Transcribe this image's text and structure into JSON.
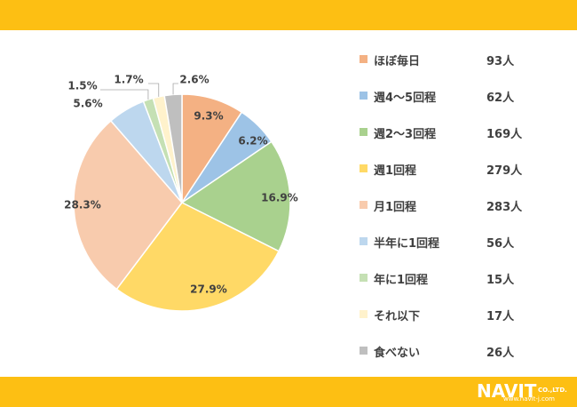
{
  "chart_data": {
    "type": "pie",
    "title": "",
    "slices": [
      {
        "label": "ほぼ毎日",
        "count": "93人",
        "percent": 9.3,
        "percent_label": "9.3%",
        "color": "#f4b183"
      },
      {
        "label": "週4〜5回程",
        "count": "62人",
        "percent": 6.2,
        "percent_label": "6.2%",
        "color": "#9dc3e6"
      },
      {
        "label": "週2〜3回程",
        "count": "169人",
        "percent": 16.9,
        "percent_label": "16.9%",
        "color": "#a9d18e"
      },
      {
        "label": "週1回程",
        "count": "279人",
        "percent": 27.9,
        "percent_label": "27.9%",
        "color": "#ffd966"
      },
      {
        "label": "月1回程",
        "count": "283人",
        "percent": 28.3,
        "percent_label": "28.3%",
        "color": "#f8cbad"
      },
      {
        "label": "半年に1回程",
        "count": "56人",
        "percent": 5.6,
        "percent_label": "5.6%",
        "color": "#bdd7ee"
      },
      {
        "label": "年に1回程",
        "count": "15人",
        "percent": 1.5,
        "percent_label": "1.5%",
        "color": "#c5e0b4"
      },
      {
        "label": "それ以下",
        "count": "17人",
        "percent": 1.7,
        "percent_label": "1.7%",
        "color": "#fff2cc"
      },
      {
        "label": "食べない",
        "count": "26人",
        "percent": 2.6,
        "percent_label": "2.6%",
        "color": "#bfbfbf"
      }
    ],
    "legend_position": "right"
  },
  "branding": {
    "logo_text": "NAVIT",
    "logo_suffix": "CO.,LTD.",
    "url": "www.navit-j.com",
    "band_color": "#fdbf13"
  }
}
